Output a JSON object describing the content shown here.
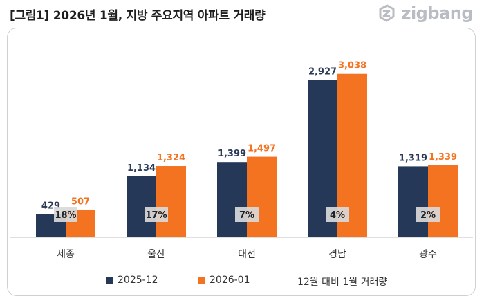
{
  "title": "[그림1] 2026년 1월, 지방 주요지역 아파트 거래량",
  "logo": {
    "text": "zigbang"
  },
  "colors": {
    "s1": "#253858",
    "s2": "#f47321",
    "label2": "#f47321",
    "label1": "#2b3a57"
  },
  "legend_note": "12월 대비 1월 거래량",
  "chart_data": {
    "type": "bar",
    "title": "[그림1] 2026년 1월, 지방 주요지역 아파트 거래량",
    "categories": [
      "세종",
      "울산",
      "대전",
      "경남",
      "광주"
    ],
    "series": [
      {
        "name": "2025-12",
        "values": [
          429,
          1134,
          1399,
          2927,
          1319
        ]
      },
      {
        "name": "2026-01",
        "values": [
          507,
          1324,
          1497,
          3038,
          1339
        ]
      }
    ],
    "value_labels": [
      [
        "429",
        "1,134",
        "1,399",
        "2,927",
        "1,319"
      ],
      [
        "507",
        "1,324",
        "1,497",
        "3,038",
        "1,339"
      ]
    ],
    "change_labels": [
      "18%",
      "17%",
      "7%",
      "4%",
      "2%"
    ],
    "ylim": [
      0,
      3600
    ],
    "grid": false,
    "legend_position": "bottom",
    "xlabel": "",
    "ylabel": ""
  }
}
